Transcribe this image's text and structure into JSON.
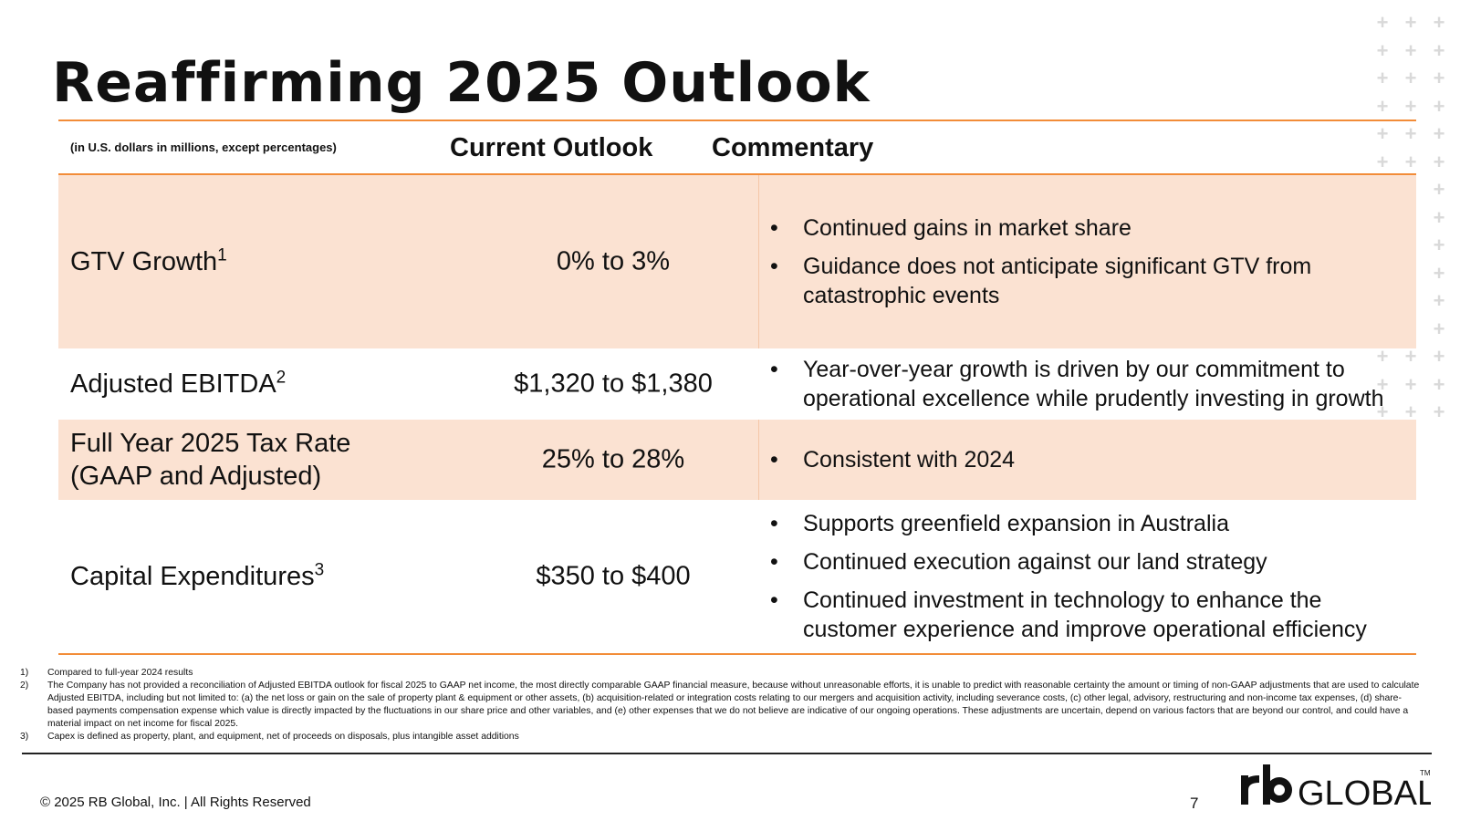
{
  "title": "Reaffirming 2025 Outlook",
  "table": {
    "units_note": "(in U.S. dollars in millions, except percentages)",
    "col_outlook": "Current Outlook",
    "col_commentary": "Commentary",
    "bullet": "•",
    "rows": [
      {
        "metric": "GTV Growth",
        "sup": "1",
        "outlook": "0% to 3%",
        "comments": [
          "Continued gains in market share",
          "Guidance does not anticipate significant GTV from catastrophic events"
        ]
      },
      {
        "metric": "Adjusted EBITDA",
        "sup": "2",
        "outlook": "$1,320 to $1,380",
        "comments": [
          "Year-over-year growth is driven by our commitment to operational excellence while prudently investing in growth"
        ]
      },
      {
        "metric_line1": "Full Year 2025 Tax Rate",
        "metric_line2": "(GAAP and Adjusted)",
        "outlook": "25% to 28%",
        "comments": [
          "Consistent with 2024"
        ]
      },
      {
        "metric": "Capital Expenditures",
        "sup": "3",
        "outlook": "$350 to $400",
        "comments": [
          "Supports greenfield expansion in Australia",
          "Continued execution against our land strategy",
          "Continued investment in technology to enhance the customer experience and improve operational efficiency"
        ]
      }
    ]
  },
  "footnotes": [
    {
      "num": "1)",
      "text": "Compared to full-year 2024 results"
    },
    {
      "num": "2)",
      "text": "The Company has not provided a reconciliation of Adjusted EBITDA outlook for fiscal 2025 to GAAP net income, the most directly comparable GAAP financial measure, because without unreasonable efforts, it is unable to predict with reasonable certainty the amount or timing of non-GAAP adjustments that are used to calculate Adjusted EBITDA, including but not limited to: (a) the net loss or gain on the sale of property plant & equipment or other assets, (b) acquisition-related or integration costs relating to our mergers and acquisition activity, including severance costs, (c) other legal, advisory, restructuring and non-income tax expenses, (d) share-based payments compensation expense which value is directly impacted by the fluctuations in our share price and other variables, and (e) other expenses that we do not believe are indicative of our ongoing operations. These adjustments are uncertain, depend on various factors that are beyond our control, and could have a material impact on net income for fiscal 2025."
    },
    {
      "num": "3)",
      "text": "Capex is defined as property, plant, and equipment, net of proceeds on disposals, plus intangible asset additions"
    }
  ],
  "footer": {
    "copyright": "© 2025 RB Global, Inc. | All Rights Reserved",
    "page_number": "7",
    "logo_text": "rb GLOBAL™"
  },
  "colors": {
    "accent_orange": "#f28c38",
    "row_shade": "#fbe2d2",
    "plus_grey": "#d9d9d9"
  },
  "decoration_icon": "plus-pattern-icon"
}
